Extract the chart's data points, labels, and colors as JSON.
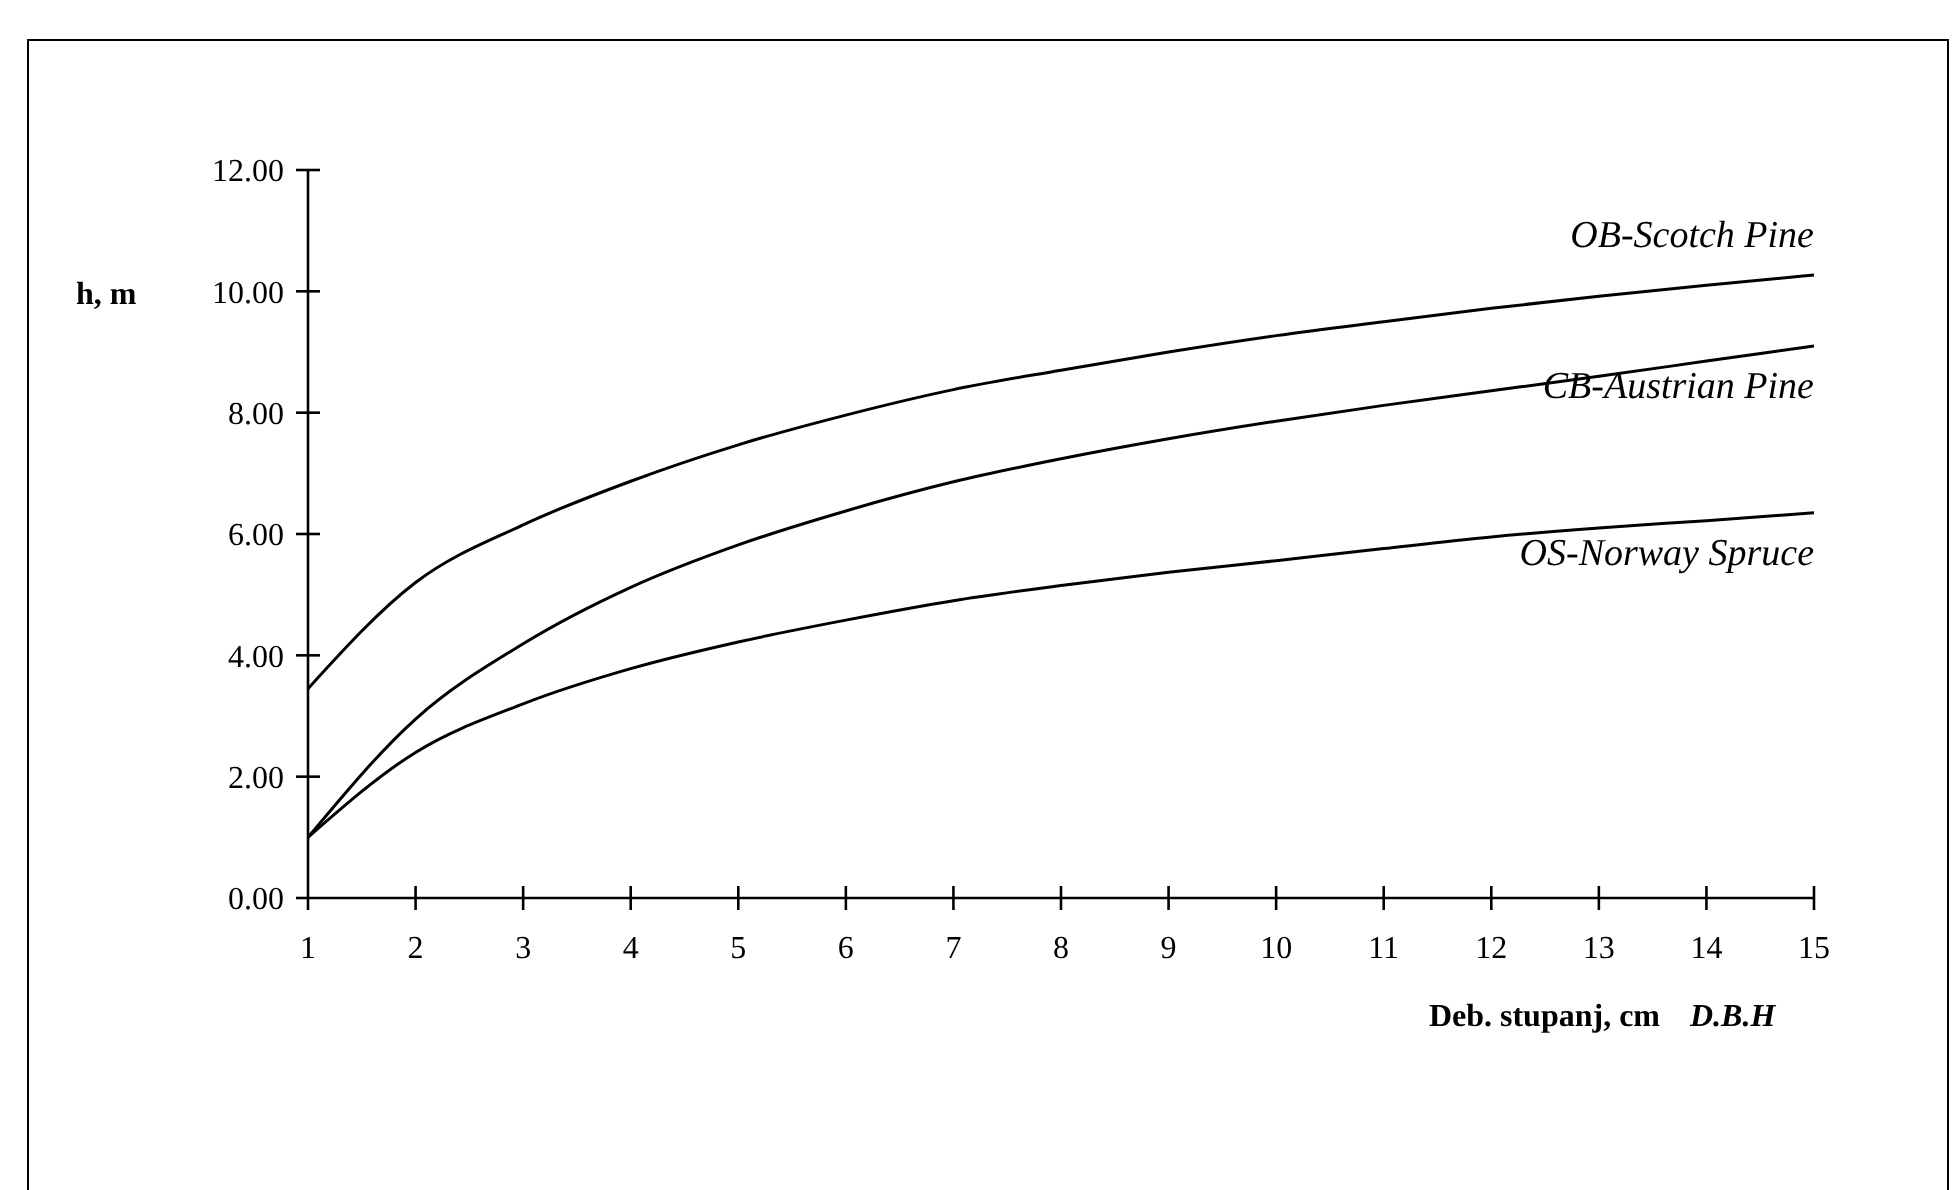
{
  "chart_data": {
    "type": "line",
    "xlabel": "Deb. stupanj, cm",
    "ylabel": "h, m",
    "annotations": [
      "D.B.H"
    ],
    "x": [
      1,
      2,
      3,
      4,
      5,
      6,
      7,
      8,
      9,
      10,
      11,
      12,
      13,
      14,
      15
    ],
    "series": [
      {
        "name": "OB-Scotch Pine",
        "color": "#000000",
        "values": [
          3.45,
          5.2,
          6.15,
          6.87,
          7.47,
          7.96,
          8.38,
          8.7,
          9.0,
          9.27,
          9.5,
          9.72,
          9.92,
          10.1,
          10.27
        ]
      },
      {
        "name": "CB-Austrian Pine",
        "color": "#000000",
        "values": [
          1.0,
          2.95,
          4.19,
          5.12,
          5.82,
          6.38,
          6.86,
          7.24,
          7.57,
          7.86,
          8.12,
          8.36,
          8.6,
          8.85,
          9.1
        ]
      },
      {
        "name": "OS-Norway Spruce",
        "color": "#000000",
        "values": [
          1.0,
          2.4,
          3.2,
          3.78,
          4.22,
          4.58,
          4.9,
          5.15,
          5.37,
          5.56,
          5.76,
          5.95,
          6.1,
          6.22,
          6.35
        ]
      }
    ],
    "xlim": [
      1,
      15
    ],
    "xticks": [
      1,
      2,
      3,
      4,
      5,
      6,
      7,
      8,
      9,
      10,
      11,
      12,
      13,
      14,
      15
    ],
    "ylim": [
      0,
      12
    ],
    "yticks": [
      {
        "value": 0,
        "label": "0.00"
      },
      {
        "value": 2,
        "label": "2.00"
      },
      {
        "value": 4,
        "label": "4.00"
      },
      {
        "value": 6,
        "label": "6.00"
      },
      {
        "value": 8,
        "label": "8.00"
      },
      {
        "value": 10,
        "label": "10.00"
      },
      {
        "value": 12,
        "label": "12.00"
      }
    ],
    "grid": false,
    "marker": "none",
    "line_style": "solid"
  }
}
